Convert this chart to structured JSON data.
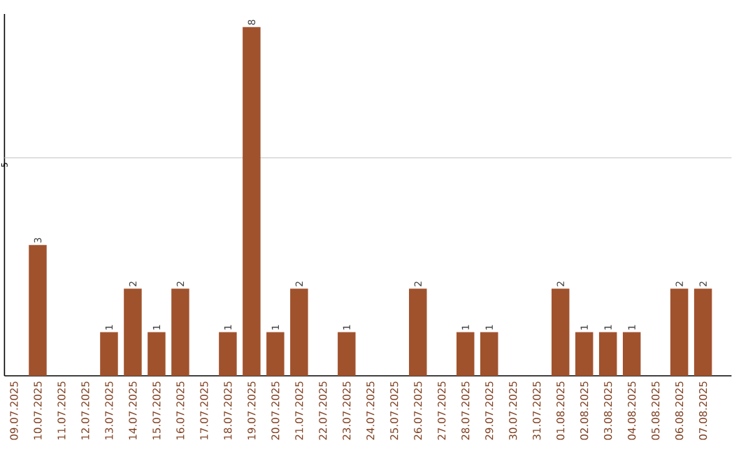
{
  "chart_data": {
    "type": "bar",
    "categories": [
      "09.07.2025",
      "10.07.2025",
      "11.07.2025",
      "12.07.2025",
      "13.07.2025",
      "14.07.2025",
      "15.07.2025",
      "16.07.2025",
      "17.07.2025",
      "18.07.2025",
      "19.07.2025",
      "20.07.2025",
      "21.07.2025",
      "22.07.2025",
      "23.07.2025",
      "24.07.2025",
      "25.07.2025",
      "26.07.2025",
      "27.07.2025",
      "28.07.2025",
      "29.07.2025",
      "30.07.2025",
      "31.07.2025",
      "01.08.2025",
      "02.08.2025",
      "03.08.2025",
      "04.08.2025",
      "05.08.2025",
      "06.08.2025",
      "07.08.2025"
    ],
    "values": [
      0,
      3,
      0,
      0,
      1,
      2,
      1,
      2,
      0,
      1,
      8,
      1,
      2,
      0,
      1,
      0,
      0,
      2,
      0,
      1,
      1,
      0,
      0,
      2,
      1,
      1,
      1,
      0,
      2,
      2
    ],
    "value_labels": [
      null,
      "3",
      null,
      null,
      "1",
      "2",
      "1",
      "2",
      null,
      "1",
      "8",
      "1",
      "2",
      null,
      "1",
      null,
      null,
      "2",
      null,
      "1",
      "1",
      null,
      null,
      "2",
      "1",
      "1",
      "1",
      null,
      "2",
      "2"
    ],
    "color": "#a0522d",
    "ylim": [
      0,
      8.3
    ],
    "ref_lines": [
      {
        "axis": "y",
        "value": 5,
        "label": "5",
        "color": "#cccccc"
      }
    ]
  }
}
